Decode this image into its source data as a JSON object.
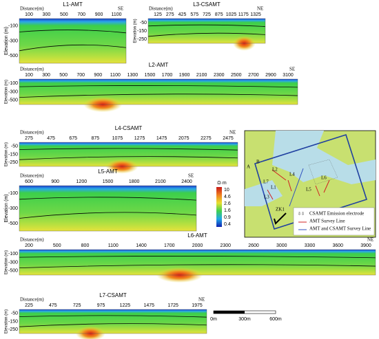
{
  "panels": [
    {
      "title": "L1-AMT",
      "xlabel": "Distance(m)",
      "xticks": [
        100,
        300,
        500,
        700,
        900,
        1100
      ],
      "direction": "SE",
      "ylabel": "Elevation (m)",
      "yticks": [
        -100,
        -300,
        -500
      ]
    },
    {
      "title": "L3-CSAMT",
      "xlabel": "Distance(m)",
      "xticks": [
        125,
        275,
        425,
        575,
        725,
        875,
        1025,
        1175,
        1325
      ],
      "direction": "NE",
      "ylabel": "Elevation (m)",
      "yticks": [
        -50,
        -150,
        -250
      ]
    },
    {
      "title": "L2-AMT",
      "xlabel": "Distance(m)",
      "xticks": [
        100,
        300,
        500,
        700,
        900,
        1100,
        1300,
        1500,
        1700,
        1900,
        2100,
        2300,
        2500,
        2700,
        2900,
        3100
      ],
      "direction": "SE",
      "ylabel": "Elevation (m)",
      "yticks": [
        -100,
        -300,
        -500
      ]
    },
    {
      "title": "L4-CSAMT",
      "xlabel": "Distance(m)",
      "xticks": [
        275,
        475,
        675,
        875,
        1075,
        1275,
        1475,
        2075,
        2275,
        2475
      ],
      "direction": "NE",
      "ylabel": "Elevation (m)",
      "yticks": [
        -50,
        -150,
        -250
      ]
    },
    {
      "title": "L5-AMT",
      "xlabel": "Distance(m)",
      "xticks": [
        600,
        900,
        1200,
        1500,
        1800,
        2100,
        2400
      ],
      "direction": "SE",
      "ylabel": "Elevation (m)",
      "yticks": [
        -100,
        -300,
        -500
      ]
    },
    {
      "title": "L6-AMT",
      "xlabel": "Distance(m)",
      "xticks": [
        200,
        500,
        800,
        1100,
        1400,
        1700,
        2000,
        2300,
        2600,
        3000,
        3300,
        3600,
        3900
      ],
      "direction": "NE",
      "ylabel": "Elevation (m)",
      "yticks": [
        -100,
        -300,
        -500
      ]
    },
    {
      "title": "L7-CSAMT",
      "xlabel": "Distance(m)",
      "xticks": [
        225,
        475,
        725,
        975,
        1225,
        1475,
        1725,
        1975
      ],
      "direction": "NE",
      "ylabel": "Elevation (m)",
      "yticks": [
        -50,
        -150,
        -250
      ]
    }
  ],
  "colorbar": {
    "unit": "Ω·m",
    "ticks": [
      10,
      4.6,
      2.6,
      1.6,
      0.9,
      0.4
    ]
  },
  "map": {
    "labels": [
      "A",
      "B",
      "L2",
      "L4",
      "L7",
      "L1",
      "L3",
      "L5",
      "L6",
      "ZK1"
    ],
    "legend": [
      "CSAMT Emission electrode",
      "AMT Survey Line",
      "AMT and CSAMT Survey Line"
    ]
  },
  "scale_bar": {
    "labels": [
      "0m",
      "300m",
      "600m"
    ]
  }
}
